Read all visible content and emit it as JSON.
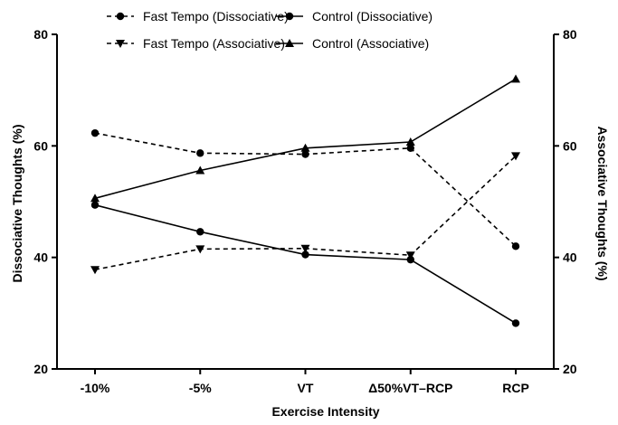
{
  "chart_data": {
    "type": "line",
    "xlabel": "Exercise Intensity",
    "ylabel_left": "Dissociative Thoughts (%)",
    "ylabel_right": "Associative Thoughts (%)",
    "categories": [
      "-10%",
      "-5%",
      "VT",
      "Δ50%VT–RCP",
      "RCP"
    ],
    "ylim": [
      20,
      80
    ],
    "yticks": [
      20,
      40,
      60,
      80
    ],
    "grid": false,
    "legend_position": "top",
    "series": [
      {
        "name": "Fast Tempo (Dissociative)",
        "marker": "circle",
        "line": "dashed",
        "axis": "left",
        "values": [
          62.3,
          58.7,
          58.5,
          59.6,
          42.0
        ]
      },
      {
        "name": "Control (Dissociative)",
        "marker": "circle",
        "line": "solid",
        "axis": "left",
        "values": [
          49.4,
          44.6,
          40.5,
          39.6,
          28.2
        ]
      },
      {
        "name": "Fast Tempo (Associative)",
        "marker": "triangle-down",
        "line": "dashed",
        "axis": "right",
        "values": [
          37.8,
          41.5,
          41.6,
          40.4,
          58.2
        ]
      },
      {
        "name": "Control (Associative)",
        "marker": "triangle-up",
        "line": "solid",
        "axis": "right",
        "values": [
          50.6,
          55.6,
          59.6,
          60.7,
          72.0
        ]
      }
    ],
    "colors": {
      "line": "#000000",
      "background": "#ffffff"
    }
  }
}
